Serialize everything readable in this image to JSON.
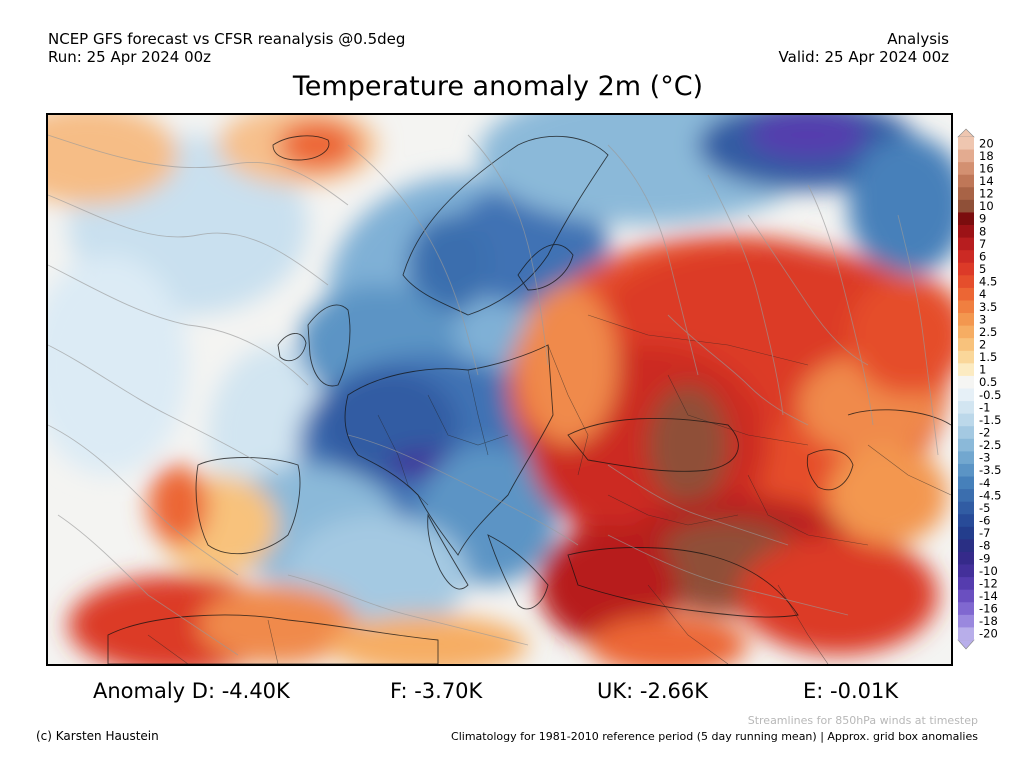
{
  "header": {
    "left_line1": "NCEP GFS forecast vs CFSR reanalysis @0.5deg",
    "left_line2": "Run: 25 Apr 2024 00z",
    "right_line1": "Analysis",
    "right_line2": "Valid: 25 Apr 2024 00z",
    "title": "Temperature anomaly 2m (°C)"
  },
  "map": {
    "region": "Europe",
    "variable": "2m temperature anomaly",
    "overlay": "streamlines (850hPa wind)",
    "colors": {
      "brown_extreme": "#8a5a44",
      "dark_red": "#b71518",
      "red": "#d83023",
      "orange": "#f08a4b",
      "light_orange": "#f6bd86",
      "neutral": "#f4f4f2",
      "light_blue": "#bcd8ea",
      "mid_blue": "#7fb0d6",
      "blue": "#3f72b4",
      "dark_blue": "#28459a",
      "purple": "#5a3fb0"
    }
  },
  "colorbar": {
    "labels": [
      "20",
      "18",
      "16",
      "14",
      "12",
      "10",
      "9",
      "8",
      "7",
      "6",
      "5",
      "4.5",
      "4",
      "3.5",
      "3",
      "2.5",
      "2",
      "1.5",
      "1",
      "0.5",
      "-0.5",
      "-1",
      "-1.5",
      "-2",
      "-2.5",
      "-3",
      "-3.5",
      "-4",
      "-4.5",
      "-5",
      "-6",
      "-7",
      "-8",
      "-9",
      "-10",
      "-12",
      "-14",
      "-16",
      "-18",
      "-20"
    ],
    "colors": [
      "#efc6b0",
      "#e3ab90",
      "#d39071",
      "#bf7758",
      "#a86346",
      "#8f5038",
      "#7b0d0e",
      "#9c1216",
      "#b71d1f",
      "#cc2a24",
      "#dc3a28",
      "#e54e2c",
      "#ec6634",
      "#f07f40",
      "#f3974f",
      "#f6ad63",
      "#f8c27c",
      "#fad79a",
      "#fcebc2",
      "#f5f5f3",
      "#e6f0f7",
      "#d2e5f1",
      "#bcd8ea",
      "#a4c9e2",
      "#8bb9d9",
      "#72a7cf",
      "#5b94c5",
      "#4680ba",
      "#3b6eae",
      "#315ca3",
      "#284b98",
      "#233d8c",
      "#2a2f84",
      "#352a8a",
      "#43309a",
      "#553cae",
      "#6a4fc0",
      "#8068d0",
      "#9a88de",
      "#b8aeea"
    ]
  },
  "stats": {
    "d": "Anomaly D: -4.40K",
    "f": "F: -3.70K",
    "uk": "UK: -2.66K",
    "e": "E: -0.01K"
  },
  "footer": {
    "stream_note": "Streamlines for 850hPa winds at timestep",
    "credit": "(c) Karsten Haustein",
    "clim_note": "Climatology for 1981-2010 reference period (5 day running mean) | Approx. grid box anomalies"
  }
}
